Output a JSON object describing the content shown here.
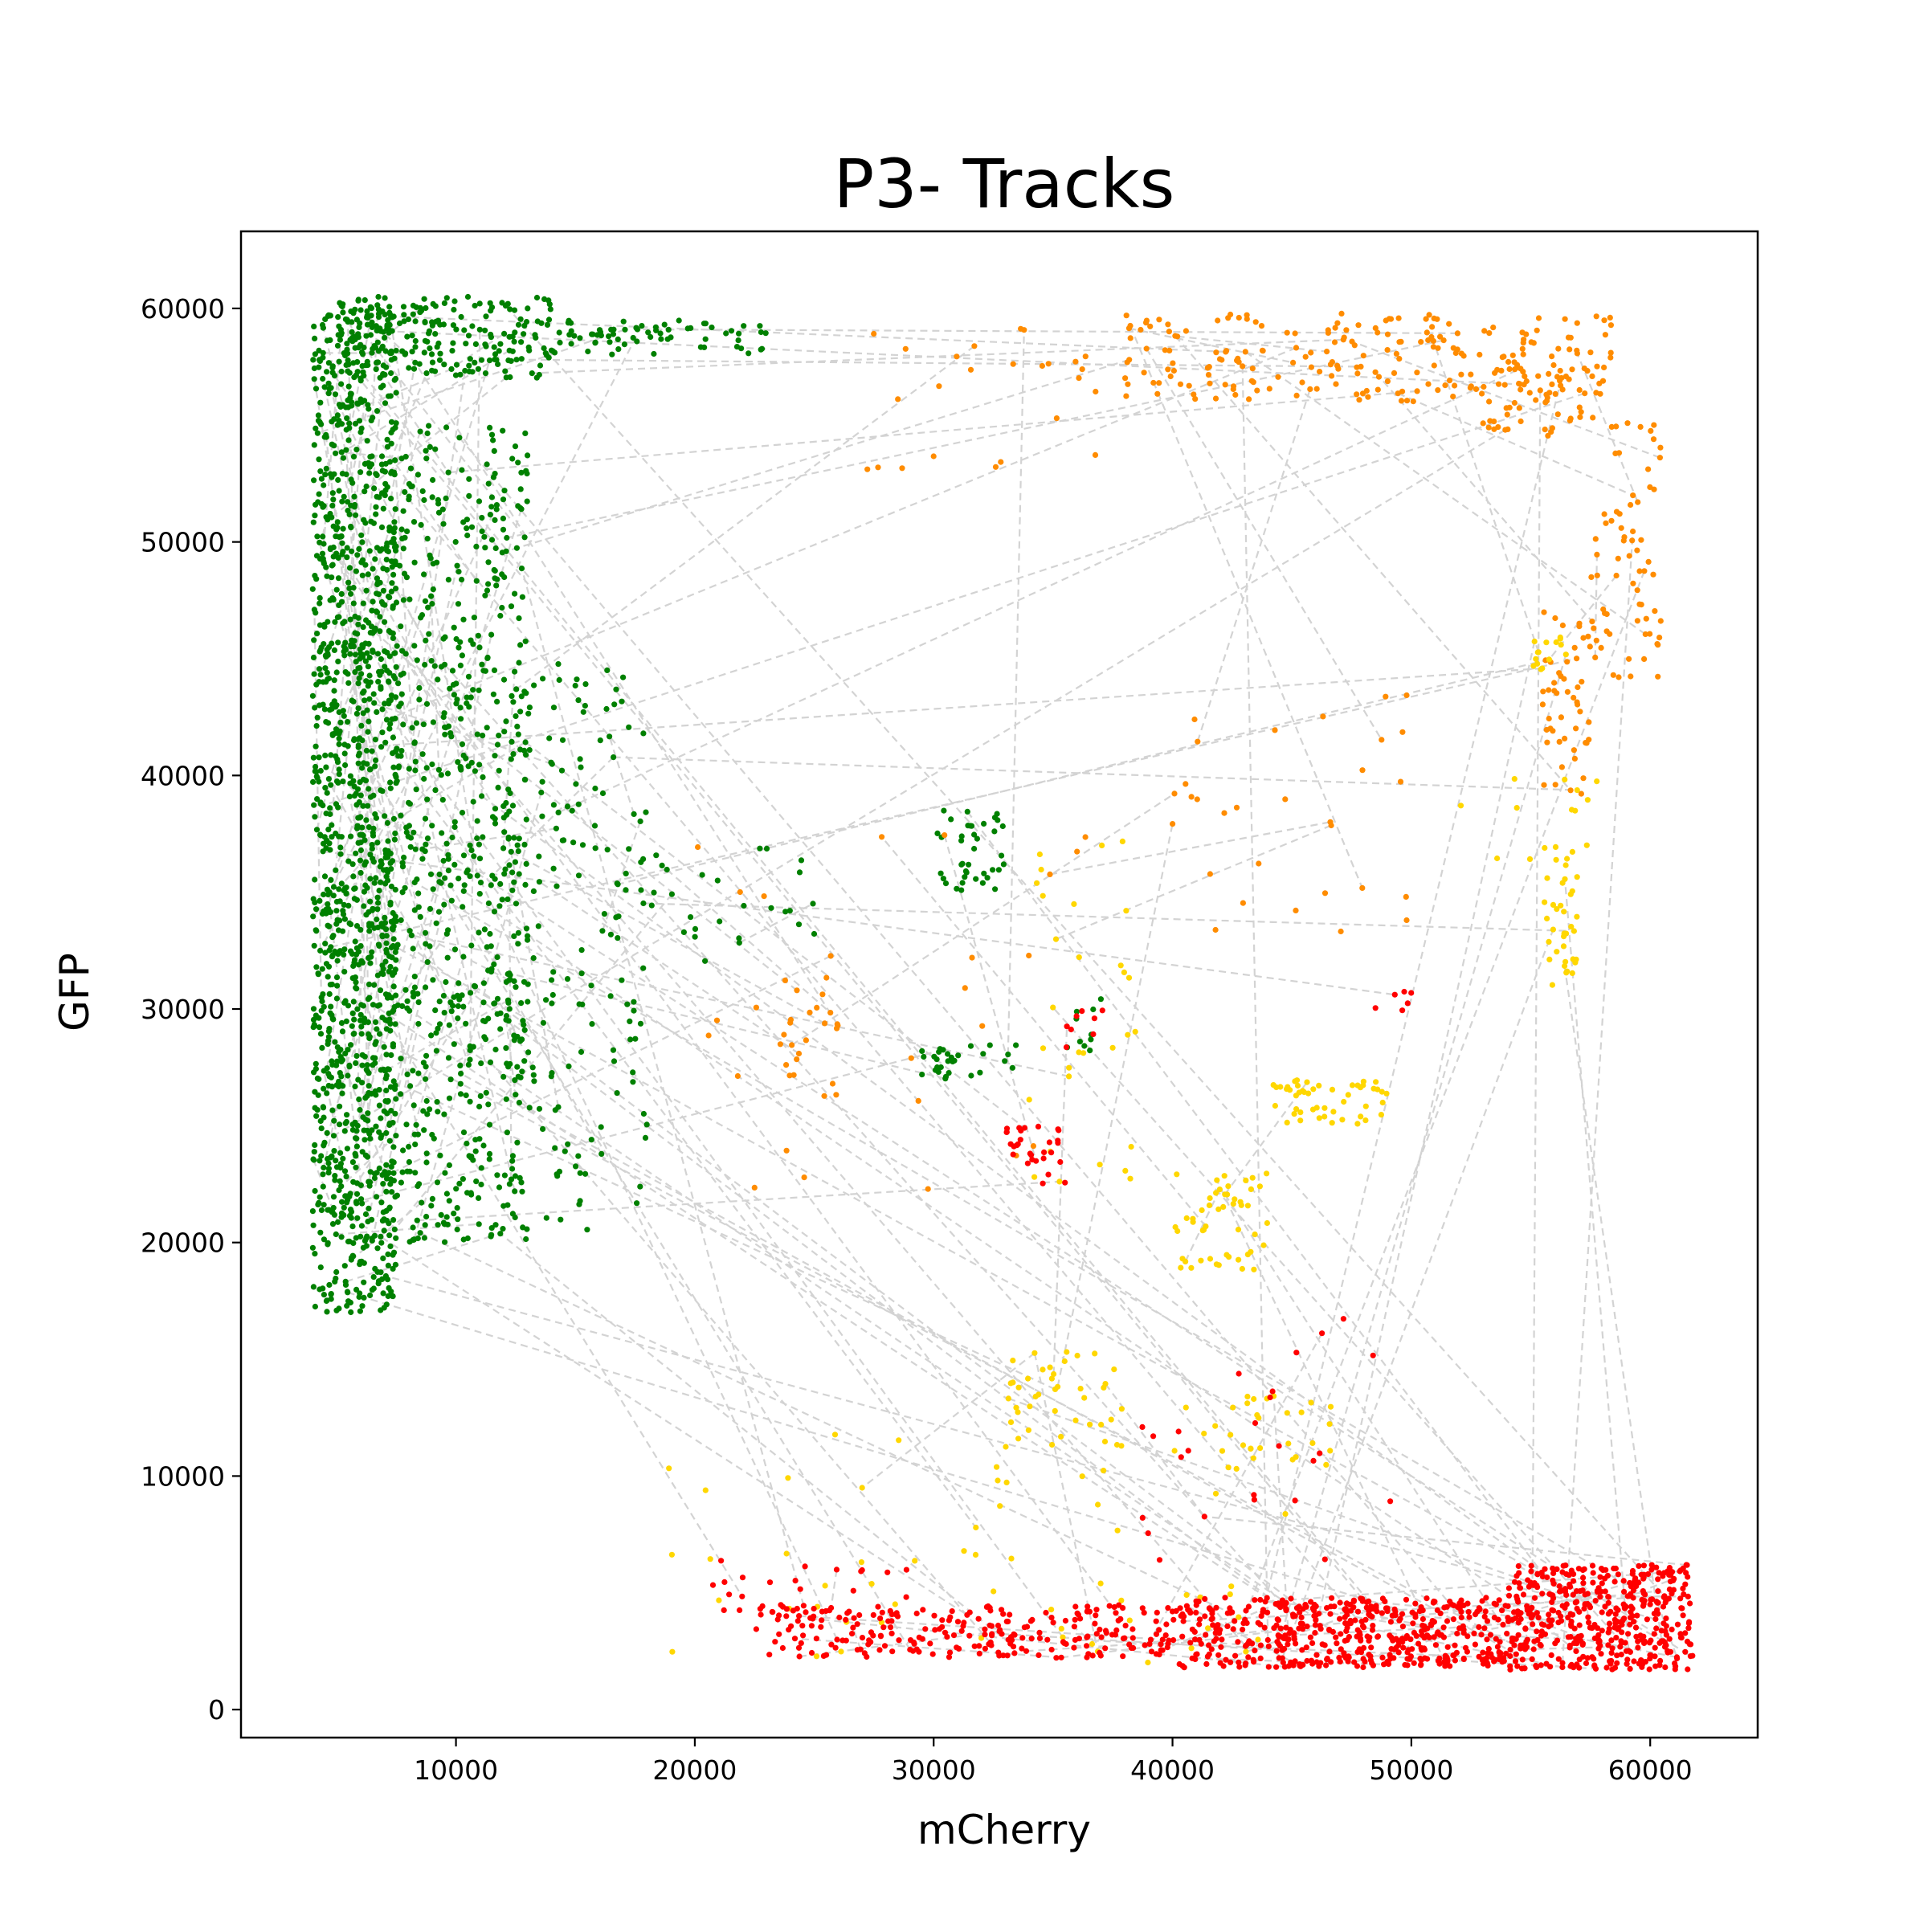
{
  "chart_data": {
    "type": "scatter",
    "title": "P3- Tracks",
    "xlabel": "mCherry",
    "ylabel": "GFP",
    "xlim": [
      1000,
      64500
    ],
    "ylim": [
      -1200,
      63300
    ],
    "xticks": [
      10000,
      20000,
      30000,
      40000,
      50000,
      60000
    ],
    "yticks": [
      0,
      10000,
      20000,
      30000,
      40000,
      50000,
      60000
    ],
    "xtick_labels": [
      "10000",
      "20000",
      "30000",
      "40000",
      "50000",
      "60000"
    ],
    "ytick_labels": [
      "0",
      "10000",
      "20000",
      "30000",
      "40000",
      "50000",
      "60000"
    ],
    "grid": false,
    "legend": "none",
    "track_line": {
      "color": "#d3d3d3",
      "style": "dashed"
    },
    "series": [
      {
        "color": "#008000",
        "clusters": [
          {
            "x": [
              4000,
              7500
            ],
            "y": [
              17000,
              60000
            ],
            "n": 1300
          },
          {
            "x": [
              7000,
              13000
            ],
            "y": [
              20000,
              55000
            ],
            "n": 700
          },
          {
            "x": [
              5000,
              14000
            ],
            "y": [
              57000,
              60500
            ],
            "n": 220
          },
          {
            "x": [
              12000,
              18000
            ],
            "y": [
              20000,
              45000
            ],
            "n": 160
          },
          {
            "x": [
              14000,
              23000
            ],
            "y": [
              58000,
              59500
            ],
            "n": 70
          },
          {
            "x": [
              30000,
              33000
            ],
            "y": [
              35000,
              38500
            ],
            "n": 40
          },
          {
            "x": [
              29500,
              33500
            ],
            "y": [
              27000,
              28500
            ],
            "n": 30
          },
          {
            "x": [
              17000,
              25000
            ],
            "y": [
              32000,
              37000
            ],
            "n": 30
          },
          {
            "x": [
              35500,
              37000
            ],
            "y": [
              28000,
              30500
            ],
            "n": 10
          }
        ]
      },
      {
        "color": "#ff8c00",
        "clusters": [
          {
            "x": [
              38000,
              58500
            ],
            "y": [
              56000,
              59800
            ],
            "n": 230
          },
          {
            "x": [
              53000,
              57500
            ],
            "y": [
              54500,
              57500
            ],
            "n": 50
          },
          {
            "x": [
              57500,
              60500
            ],
            "y": [
              44000,
              56000
            ],
            "n": 70
          },
          {
            "x": [
              55500,
              57500
            ],
            "y": [
              39000,
              47000
            ],
            "n": 50
          },
          {
            "x": [
              23500,
              26000
            ],
            "y": [
              26000,
              31500
            ],
            "n": 25
          },
          {
            "x": [
              40000,
              50000
            ],
            "y": [
              33000,
              43500
            ],
            "n": 30
          },
          {
            "x": [
              20000,
              37000
            ],
            "y": [
              22000,
              37500
            ],
            "n": 25
          },
          {
            "x": [
              27000,
              37000
            ],
            "y": [
              53000,
              59500
            ],
            "n": 25
          }
        ]
      },
      {
        "color": "#ffd700",
        "clusters": [
          {
            "x": [
              44000,
              49000
            ],
            "y": [
              25000,
              27000
            ],
            "n": 50
          },
          {
            "x": [
              40000,
              44000
            ],
            "y": [
              18500,
              23000
            ],
            "n": 50
          },
          {
            "x": [
              55500,
              57000
            ],
            "y": [
              31000,
              37000
            ],
            "n": 35
          },
          {
            "x": [
              55000,
              56500
            ],
            "y": [
              44500,
              46000
            ],
            "n": 15
          },
          {
            "x": [
              33000,
              38000
            ],
            "y": [
              11000,
              15500
            ],
            "n": 40
          },
          {
            "x": [
              40000,
              47000
            ],
            "y": [
              10000,
              13500
            ],
            "n": 30
          },
          {
            "x": [
              18500,
              45000
            ],
            "y": [
              2000,
              12000
            ],
            "n": 60
          },
          {
            "x": [
              34000,
              38500
            ],
            "y": [
              22000,
              38000
            ],
            "n": 30
          },
          {
            "x": [
              52000,
              58000
            ],
            "y": [
              36000,
              40000
            ],
            "n": 15
          }
        ]
      },
      {
        "color": "#ff0000",
        "clusters": [
          {
            "x": [
              22500,
              40000
            ],
            "y": [
              2200,
              4500
            ],
            "n": 250
          },
          {
            "x": [
              40000,
              54000
            ],
            "y": [
              1800,
              4800
            ],
            "n": 500
          },
          {
            "x": [
              54000,
              61800
            ],
            "y": [
              1700,
              6200
            ],
            "n": 450
          },
          {
            "x": [
              33000,
              35500
            ],
            "y": [
              22500,
              25000
            ],
            "n": 30
          },
          {
            "x": [
              20500,
              30000
            ],
            "y": [
              3200,
              6500
            ],
            "n": 30
          },
          {
            "x": [
              38000,
              50000
            ],
            "y": [
              6000,
              17500
            ],
            "n": 25
          },
          {
            "x": [
              48000,
              50000
            ],
            "y": [
              29500,
              30800
            ],
            "n": 6
          },
          {
            "x": [
              35500,
              37500
            ],
            "y": [
              28000,
              30500
            ],
            "n": 8
          }
        ]
      }
    ],
    "track_count": 260
  }
}
